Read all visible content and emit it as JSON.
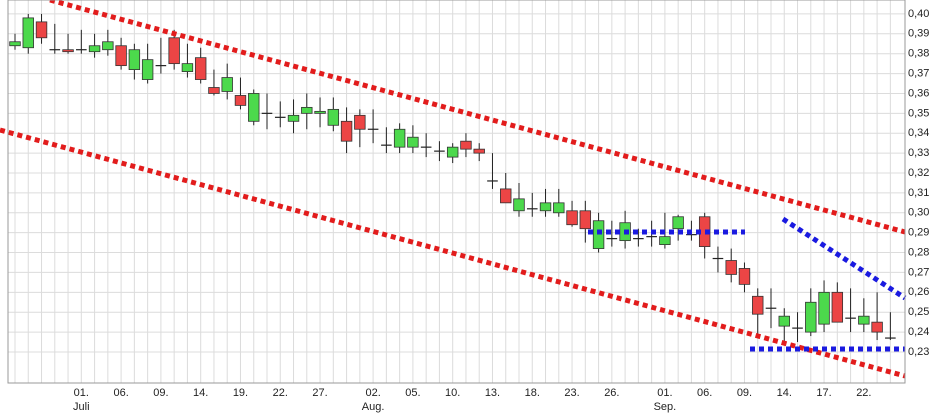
{
  "chart_data": {
    "type": "candlestick",
    "categories": [
      null,
      null,
      null,
      null,
      null,
      "01.",
      null,
      null,
      "06.",
      null,
      null,
      "09.",
      null,
      null,
      "14.",
      null,
      null,
      "19.",
      null,
      null,
      "22.",
      null,
      null,
      "27.",
      null,
      null,
      null,
      "02.",
      null,
      null,
      "05.",
      null,
      null,
      "10.",
      null,
      null,
      "13.",
      null,
      null,
      "18.",
      null,
      null,
      "23.",
      null,
      null,
      "26.",
      null,
      null,
      null,
      "01.",
      null,
      null,
      "06.",
      null,
      null,
      "09.",
      null,
      null,
      "14.",
      null,
      null,
      "17.",
      null,
      null,
      "22.",
      null,
      null
    ],
    "months": [
      null,
      null,
      null,
      null,
      null,
      "Juli",
      null,
      null,
      null,
      null,
      null,
      null,
      null,
      null,
      null,
      null,
      null,
      null,
      null,
      null,
      null,
      null,
      null,
      null,
      null,
      null,
      null,
      "Aug.",
      null,
      null,
      null,
      null,
      null,
      null,
      null,
      null,
      null,
      null,
      null,
      null,
      null,
      null,
      null,
      null,
      null,
      null,
      null,
      null,
      null,
      "Sep.",
      null,
      null,
      null,
      null,
      null,
      null,
      null,
      null,
      null,
      null,
      null,
      null,
      null,
      null,
      null,
      null,
      null
    ],
    "open": [
      0.384,
      0.383,
      0.396,
      0.382,
      0.382,
      0.382,
      0.381,
      0.382,
      0.384,
      0.372,
      0.367,
      0.374,
      0.388,
      0.371,
      0.378,
      0.363,
      0.361,
      0.359,
      0.346,
      0.35,
      0.348,
      0.346,
      0.35,
      0.35,
      0.344,
      0.346,
      0.349,
      0.342,
      0.334,
      0.333,
      0.333,
      0.333,
      0.331,
      0.328,
      0.336,
      0.332,
      0.316,
      0.312,
      0.301,
      0.302,
      0.301,
      0.3,
      0.301,
      0.301,
      0.282,
      0.287,
      0.286,
      0.287,
      0.288,
      0.284,
      0.292,
      0.289,
      0.298,
      0.277,
      0.276,
      0.272,
      0.258,
      0.252,
      0.243,
      0.242,
      0.24,
      0.244,
      0.26,
      0.247,
      0.244,
      0.245,
      0.237
    ],
    "high": [
      0.39,
      0.4,
      0.4,
      0.395,
      0.39,
      0.392,
      0.39,
      0.392,
      0.388,
      0.385,
      0.385,
      0.388,
      0.392,
      0.385,
      0.383,
      0.372,
      0.375,
      0.368,
      0.362,
      0.36,
      0.356,
      0.357,
      0.36,
      0.358,
      0.358,
      0.353,
      0.352,
      0.352,
      0.343,
      0.345,
      0.344,
      0.34,
      0.336,
      0.335,
      0.34,
      0.335,
      0.33,
      0.32,
      0.315,
      0.31,
      0.312,
      0.312,
      0.306,
      0.306,
      0.3,
      0.296,
      0.301,
      0.292,
      0.296,
      0.3,
      0.299,
      0.296,
      0.3,
      0.283,
      0.282,
      0.275,
      0.262,
      0.262,
      0.252,
      0.25,
      0.262,
      0.266,
      0.265,
      0.262,
      0.257,
      0.26,
      0.25
    ],
    "low": [
      0.382,
      0.38,
      0.385,
      0.38,
      0.38,
      0.38,
      0.378,
      0.379,
      0.372,
      0.367,
      0.365,
      0.37,
      0.372,
      0.368,
      0.365,
      0.359,
      0.357,
      0.352,
      0.344,
      0.342,
      0.343,
      0.34,
      0.342,
      0.343,
      0.341,
      0.33,
      0.333,
      0.335,
      0.33,
      0.33,
      0.33,
      0.328,
      0.326,
      0.325,
      0.328,
      0.326,
      0.312,
      0.305,
      0.298,
      0.298,
      0.298,
      0.298,
      0.293,
      0.285,
      0.28,
      0.283,
      0.282,
      0.283,
      0.283,
      0.282,
      0.286,
      0.286,
      0.277,
      0.27,
      0.265,
      0.26,
      0.237,
      0.242,
      0.235,
      0.235,
      0.238,
      0.24,
      0.245,
      0.24,
      0.24,
      0.236,
      0.236
    ],
    "close": [
      0.386,
      0.398,
      0.388,
      0.382,
      0.381,
      0.382,
      0.384,
      0.386,
      0.374,
      0.382,
      0.377,
      0.374,
      0.375,
      0.375,
      0.367,
      0.36,
      0.368,
      0.354,
      0.36,
      0.35,
      0.348,
      0.349,
      0.353,
      0.351,
      0.352,
      0.336,
      0.342,
      0.342,
      0.334,
      0.342,
      0.338,
      0.333,
      0.331,
      0.333,
      0.332,
      0.33,
      0.316,
      0.305,
      0.307,
      0.302,
      0.305,
      0.305,
      0.294,
      0.292,
      0.296,
      0.287,
      0.295,
      0.287,
      0.288,
      0.288,
      0.298,
      0.289,
      0.283,
      0.277,
      0.269,
      0.264,
      0.249,
      0.252,
      0.248,
      0.242,
      0.255,
      0.26,
      0.245,
      0.247,
      0.248,
      0.24,
      0.237
    ],
    "up_color": "#4cd94c",
    "down_color": "#ec4545",
    "ylim": [
      0.2144,
      0.407
    ],
    "yticks": [
      {
        "value": 0.23,
        "label": "0,23"
      },
      {
        "value": 0.24,
        "label": "0,24"
      },
      {
        "value": 0.25,
        "label": "0,25"
      },
      {
        "value": 0.26,
        "label": "0,26"
      },
      {
        "value": 0.27,
        "label": "0,27"
      },
      {
        "value": 0.28,
        "label": "0,28"
      },
      {
        "value": 0.29,
        "label": "0,29"
      },
      {
        "value": 0.3,
        "label": "0,30"
      },
      {
        "value": 0.31,
        "label": "0,31"
      },
      {
        "value": 0.32,
        "label": "0,32"
      },
      {
        "value": 0.33,
        "label": "0,33"
      },
      {
        "value": 0.34,
        "label": "0,34"
      },
      {
        "value": 0.35,
        "label": "0,35"
      },
      {
        "value": 0.36,
        "label": "0,36"
      },
      {
        "value": 0.37,
        "label": "0,37"
      },
      {
        "value": 0.38,
        "label": "0,38"
      },
      {
        "value": 0.39,
        "label": "0,39"
      },
      {
        "value": 0.4,
        "label": "0,40"
      }
    ],
    "grid": true
  }
}
